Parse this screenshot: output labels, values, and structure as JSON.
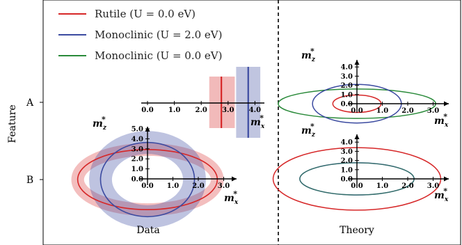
{
  "chart_data": {
    "type": "scatter",
    "ylabel": "Feature",
    "categories": [
      "A",
      "B"
    ],
    "colors": {
      "rutile_u0": "#d62728",
      "mono_u2": "#3b4aa0",
      "mono_u0": "#2a8a3a"
    },
    "legend": {
      "placement": "top-left",
      "entries": [
        {
          "key": "rutile_u0",
          "label": "Rutile (U = 0.0 eV)"
        },
        {
          "key": "mono_u2",
          "label": "Monoclinic (U = 2.0 eV)"
        },
        {
          "key": "mono_u0",
          "label": "Monoclinic (U = 0.0 eV)"
        }
      ]
    },
    "axes_labels": {
      "x": "m",
      "x_sub": "x",
      "z": "m",
      "z_sub": "z",
      "star": "*"
    },
    "panels": {
      "data": {
        "label": "Data",
        "feature_A": {
          "xticks": [
            "0.0",
            "1.0",
            "2.0",
            "3.0",
            "4.0"
          ],
          "xlim": [
            0,
            4.3
          ],
          "lines": [
            {
              "key": "rutile_u0",
              "value": 2.75,
              "band": [
                2.3,
                3.25
              ]
            },
            {
              "key": "mono_u2",
              "value": 3.75,
              "band": [
                3.3,
                4.2
              ]
            }
          ]
        },
        "feature_B": {
          "xticks": [
            "0.0",
            "1.0",
            "2.0",
            "3.0"
          ],
          "zticks": [
            "0.0",
            "1.0",
            "2.0",
            "3.0",
            "4.0",
            "5.0"
          ],
          "ellipses": [
            {
              "key": "rutile_u0",
              "mx": 2.75,
              "mz": 3.0,
              "band_width": 0.5
            },
            {
              "key": "mono_u2",
              "mx": 1.85,
              "mz": 3.7,
              "band_width": 0.9
            }
          ]
        }
      },
      "theory": {
        "label": "Theory",
        "feature_A": {
          "xticks": [
            "0.0",
            "1.0",
            "2.0",
            "3.0"
          ],
          "zticks": [
            "0.0",
            "1.0",
            "2.0",
            "3.0",
            "4.0"
          ],
          "ellipses": [
            {
              "key": "rutile_u0",
              "mx": 0.95,
              "mz": 0.95
            },
            {
              "key": "mono_u2",
              "mx": 1.75,
              "mz": 2.1
            },
            {
              "key": "mono_u0",
              "mx": 3.1,
              "mz": 1.6
            }
          ]
        },
        "feature_B": {
          "xticks": [
            "0.0",
            "1.0",
            "2.0",
            "3.0"
          ],
          "zticks": [
            "0.0",
            "1.0",
            "2.0",
            "3.0",
            "4.0"
          ],
          "ellipses": [
            {
              "key": "rutile_u0",
              "mx": 3.3,
              "mz": 3.4
            },
            {
              "key": "mono_u2",
              "mx": 2.25,
              "mz": 1.75
            },
            {
              "key": "mono_u0",
              "mx": 2.25,
              "mz": 1.75
            }
          ]
        }
      }
    }
  }
}
